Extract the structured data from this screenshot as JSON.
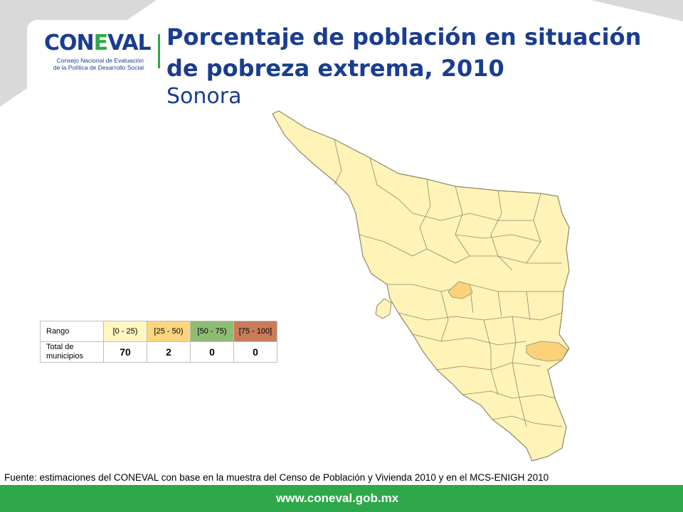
{
  "header": {
    "logo_word_a": "CON",
    "logo_word_b": "E",
    "logo_word_c": "VAL",
    "logo_line1": "Consejo Nacional de Evaluación",
    "logo_line2": "de la Política de Desarrollo Social",
    "title": "Porcentaje de población en situación de pobreza extrema, 2010",
    "subtitle": "Sonora"
  },
  "legend": {
    "row1_label": "Rango",
    "row2_label": "Total de municipios",
    "ranges": [
      {
        "label": "[0 - 25)",
        "color": "#fff6c2",
        "count": "70"
      },
      {
        "label": "[25 - 50)",
        "color": "#fdd57e",
        "count": "2"
      },
      {
        "label": "[50 - 75)",
        "color": "#8fbc74",
        "count": "0"
      },
      {
        "label": "[75 - 100]",
        "color": "#c97b5a",
        "count": "0"
      }
    ]
  },
  "map": {
    "state_fill": "#fff3b8",
    "highlight_fill": "#fbd27a",
    "border_color": "#8a8a6a"
  },
  "source": "Fuente: estimaciones del CONEVAL con base en la muestra del Censo de Población y Vivienda 2010 y en el MCS-ENIGH 2010",
  "footer": {
    "url": "www.coneval.gob.mx",
    "color": "#2ea84a"
  }
}
